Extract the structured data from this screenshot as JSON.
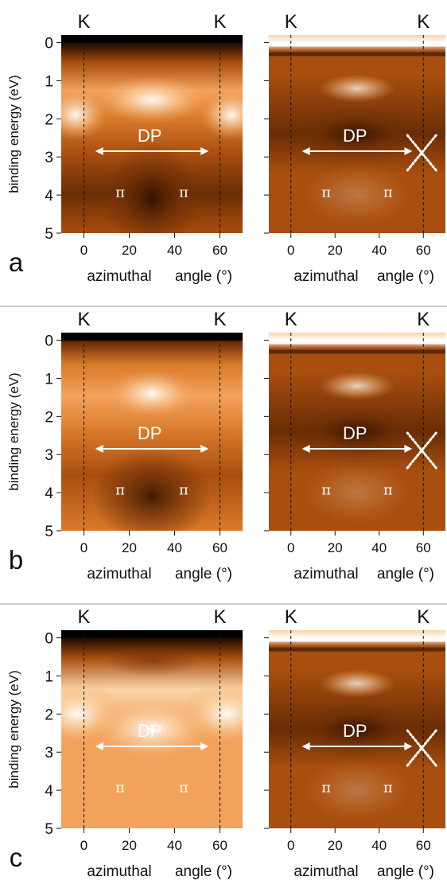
{
  "figure": {
    "ylabel": "binding energy (eV)",
    "xlabel_left": "azimuthal",
    "xlabel_right": "angle (°)",
    "y_ticks": [
      "0",
      "1",
      "2",
      "3",
      "4",
      "5"
    ],
    "x_ticks": [
      "0",
      "20",
      "40",
      "60"
    ],
    "k_label": "K",
    "dp_label": "DP",
    "pi_label": "π"
  },
  "chart_data": [
    {
      "type": "heatmap",
      "panel": "a",
      "view": "raw",
      "xlabel": "azimuthal angle (°)",
      "ylabel": "binding energy (eV)",
      "xlim": [
        -10,
        70
      ],
      "ylim": [
        5,
        -0.2
      ],
      "k_points": [
        0,
        60
      ],
      "dirac_point_eV": 2.8,
      "annotations": [
        "K",
        "K",
        "DP",
        "π",
        "π"
      ]
    },
    {
      "type": "heatmap",
      "panel": "a",
      "view": "second-derivative",
      "xlabel": "azimuthal angle (°)",
      "ylabel": "binding energy (eV)",
      "xlim": [
        -10,
        70
      ],
      "ylim": [
        5,
        -0.2
      ],
      "k_points": [
        0,
        60
      ],
      "dirac_point_eV": 2.8,
      "annotations": [
        "K",
        "K",
        "DP",
        "π",
        "π"
      ]
    },
    {
      "type": "heatmap",
      "panel": "b",
      "view": "raw",
      "xlabel": "azimuthal angle (°)",
      "ylabel": "binding energy (eV)",
      "xlim": [
        -10,
        70
      ],
      "ylim": [
        5,
        -0.2
      ],
      "k_points": [
        0,
        60
      ],
      "dirac_point_eV": 2.8,
      "annotations": [
        "K",
        "K",
        "DP",
        "π",
        "π"
      ]
    },
    {
      "type": "heatmap",
      "panel": "b",
      "view": "second-derivative",
      "xlabel": "azimuthal angle (°)",
      "ylabel": "binding energy (eV)",
      "xlim": [
        -10,
        70
      ],
      "ylim": [
        5,
        -0.2
      ],
      "k_points": [
        0,
        60
      ],
      "dirac_point_eV": 2.8,
      "annotations": [
        "K",
        "K",
        "DP",
        "π",
        "π"
      ]
    },
    {
      "type": "heatmap",
      "panel": "c",
      "view": "raw",
      "xlabel": "azimuthal angle (°)",
      "ylabel": "binding energy (eV)",
      "xlim": [
        -10,
        70
      ],
      "ylim": [
        5,
        -0.2
      ],
      "k_points": [
        0,
        60
      ],
      "dirac_point_eV": 2.8,
      "annotations": [
        "K",
        "K",
        "DP",
        "π",
        "π"
      ]
    },
    {
      "type": "heatmap",
      "panel": "c",
      "view": "second-derivative",
      "xlabel": "azimuthal angle (°)",
      "ylabel": "binding energy (eV)",
      "xlim": [
        -10,
        70
      ],
      "ylim": [
        5,
        -0.2
      ],
      "k_points": [
        0,
        60
      ],
      "dirac_point_eV": 2.8,
      "annotations": [
        "K",
        "K",
        "DP",
        "π",
        "π"
      ]
    }
  ],
  "rows": [
    {
      "letter": "a",
      "style": "a"
    },
    {
      "letter": "b",
      "style": "b"
    },
    {
      "letter": "c",
      "style": "c"
    }
  ],
  "colors": {
    "colormap": [
      "#000000",
      "#2a1000",
      "#6b2d05",
      "#a84e0f",
      "#d97a2a",
      "#f3a25c",
      "#fbd4a8",
      "#ffffff"
    ],
    "separator": "#999999",
    "text": "#111111"
  }
}
